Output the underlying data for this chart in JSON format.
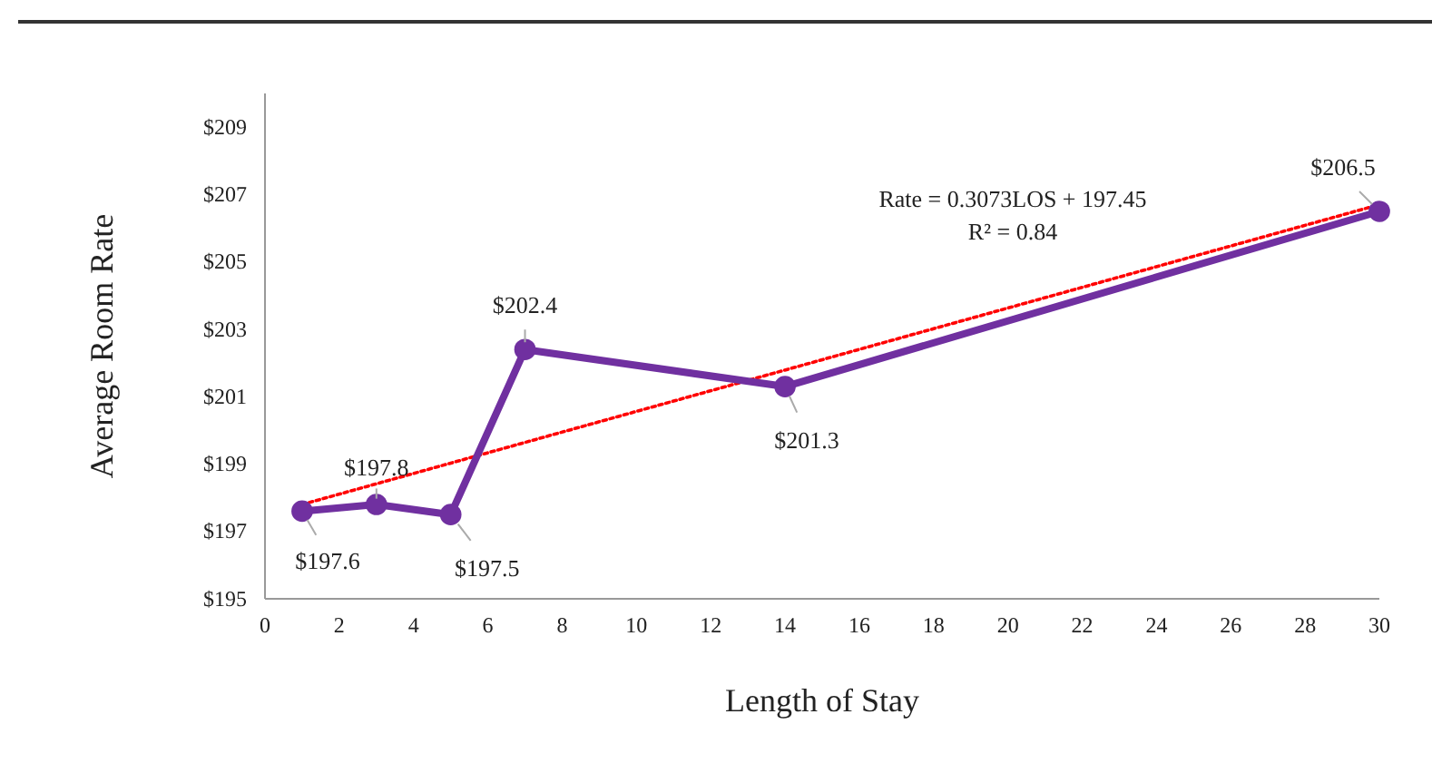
{
  "chart_data": {
    "type": "line",
    "xlabel": "Length of Stay",
    "ylabel": "Average Room Rate",
    "x": [
      1,
      3,
      5,
      7,
      14,
      30
    ],
    "series": [
      {
        "color": "#7030a0",
        "values": [
          197.6,
          197.8,
          197.5,
          202.4,
          201.3,
          206.5
        ],
        "value_labels": [
          "$197.6",
          "$197.8",
          "$197.5",
          "$202.4",
          "$201.3",
          "$206.5"
        ],
        "marker": "circle",
        "line_style": "solid"
      },
      {
        "color": "#ff0000",
        "x": [
          1,
          30
        ],
        "values": [
          197.8,
          206.7
        ],
        "marker": "none",
        "line_style": "dotted"
      }
    ],
    "annotations": [
      "Rate = 0.3073LOS + 197.45",
      "R² = 0.84"
    ],
    "xlim": [
      0,
      30
    ],
    "xticks": [
      0,
      2,
      4,
      6,
      8,
      10,
      12,
      14,
      16,
      18,
      20,
      22,
      24,
      26,
      28,
      30
    ],
    "ylim": [
      195,
      210
    ],
    "yticks": [
      {
        "value": 195,
        "label": "$195"
      },
      {
        "value": 197,
        "label": "$197"
      },
      {
        "value": 199,
        "label": "$199"
      },
      {
        "value": 201,
        "label": "$201"
      },
      {
        "value": 203,
        "label": "$203"
      },
      {
        "value": 205,
        "label": "$205"
      },
      {
        "value": 207,
        "label": "$207"
      },
      {
        "value": 209,
        "label": "$209"
      }
    ],
    "grid": false
  }
}
